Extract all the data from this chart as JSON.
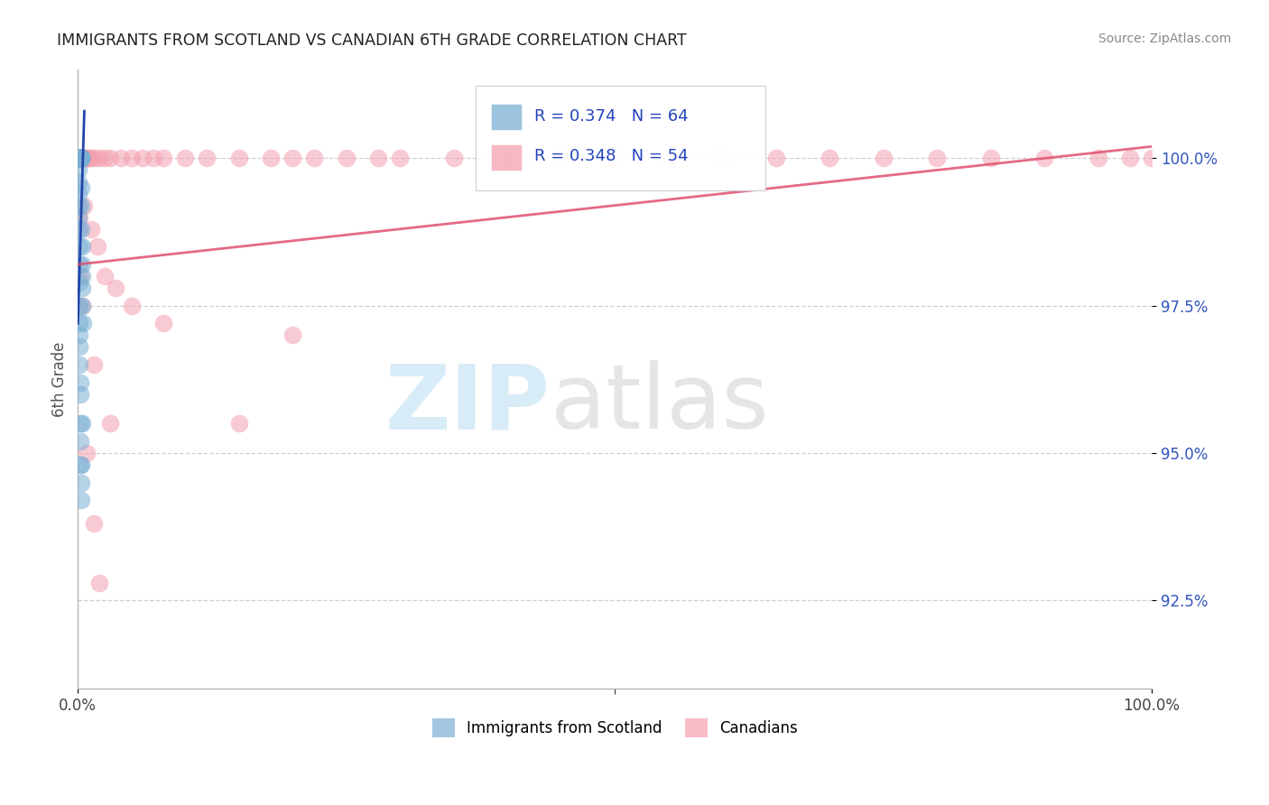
{
  "title": "IMMIGRANTS FROM SCOTLAND VS CANADIAN 6TH GRADE CORRELATION CHART",
  "source": "Source: ZipAtlas.com",
  "ylabel": "6th Grade",
  "ytick_values": [
    92.5,
    95.0,
    97.5,
    100.0
  ],
  "xlim": [
    0.0,
    100.0
  ],
  "ylim": [
    91.0,
    101.5
  ],
  "legend_blue_label": "Immigrants from Scotland",
  "legend_pink_label": "Canadians",
  "R_blue": 0.374,
  "N_blue": 64,
  "R_pink": 0.348,
  "N_pink": 54,
  "blue_color": "#7BAFD4",
  "pink_color": "#F4A0B0",
  "blue_line_color": "#2244AA",
  "pink_line_color": "#E05070",
  "background_color": "#FFFFFF",
  "blue_x": [
    0.05,
    0.07,
    0.08,
    0.09,
    0.1,
    0.1,
    0.1,
    0.11,
    0.12,
    0.13,
    0.14,
    0.15,
    0.15,
    0.16,
    0.17,
    0.18,
    0.18,
    0.19,
    0.2,
    0.2,
    0.21,
    0.22,
    0.23,
    0.24,
    0.25,
    0.26,
    0.27,
    0.28,
    0.29,
    0.3,
    0.31,
    0.32,
    0.33,
    0.34,
    0.35,
    0.36,
    0.37,
    0.38,
    0.4,
    0.42,
    0.45,
    0.05,
    0.06,
    0.07,
    0.08,
    0.09,
    0.1,
    0.11,
    0.12,
    0.13,
    0.14,
    0.15,
    0.16,
    0.17,
    0.18,
    0.19,
    0.2,
    0.22,
    0.24,
    0.26,
    0.28,
    0.3,
    0.35,
    0.4
  ],
  "blue_y": [
    100.0,
    100.0,
    100.0,
    100.0,
    100.0,
    100.0,
    100.0,
    100.0,
    100.0,
    100.0,
    100.0,
    100.0,
    100.0,
    100.0,
    100.0,
    100.0,
    100.0,
    100.0,
    100.0,
    100.0,
    100.0,
    100.0,
    100.0,
    100.0,
    100.0,
    100.0,
    100.0,
    100.0,
    100.0,
    100.0,
    100.0,
    100.0,
    99.5,
    99.2,
    98.8,
    98.5,
    98.2,
    98.0,
    97.8,
    97.5,
    97.2,
    99.8,
    99.6,
    99.4,
    99.2,
    99.0,
    98.8,
    98.5,
    98.2,
    97.9,
    97.5,
    97.2,
    97.0,
    96.8,
    96.5,
    96.2,
    96.0,
    95.5,
    95.2,
    94.8,
    94.5,
    94.2,
    94.8,
    95.5
  ],
  "pink_x": [
    0.05,
    0.08,
    0.1,
    0.12,
    0.15,
    0.18,
    0.2,
    0.25,
    0.3,
    0.35,
    0.4,
    0.5,
    0.6,
    0.7,
    0.8,
    0.9,
    1.0,
    1.2,
    1.5,
    2.0,
    2.5,
    3.0,
    4.0,
    5.0,
    6.0,
    7.0,
    8.0,
    10.0,
    12.0,
    15.0,
    18.0,
    20.0,
    22.0,
    25.0,
    28.0,
    30.0,
    35.0,
    40.0,
    45.0,
    50.0,
    55.0,
    60.0,
    65.0,
    70.0,
    75.0,
    80.0,
    85.0,
    90.0,
    95.0,
    98.0,
    100.0,
    0.15,
    0.25,
    0.4
  ],
  "pink_y": [
    100.0,
    100.0,
    100.0,
    100.0,
    100.0,
    100.0,
    100.0,
    100.0,
    100.0,
    100.0,
    100.0,
    100.0,
    100.0,
    100.0,
    100.0,
    100.0,
    100.0,
    100.0,
    100.0,
    100.0,
    100.0,
    100.0,
    100.0,
    100.0,
    100.0,
    100.0,
    100.0,
    100.0,
    100.0,
    100.0,
    100.0,
    100.0,
    100.0,
    100.0,
    100.0,
    100.0,
    100.0,
    100.0,
    100.0,
    100.0,
    100.0,
    100.0,
    100.0,
    100.0,
    100.0,
    100.0,
    100.0,
    100.0,
    100.0,
    100.0,
    100.0,
    99.0,
    98.0,
    97.5
  ],
  "blue_line": [
    [
      0.0,
      0.6
    ],
    [
      97.2,
      100.8
    ]
  ],
  "pink_line": [
    [
      0.0,
      100.0
    ],
    [
      98.2,
      100.2
    ]
  ]
}
